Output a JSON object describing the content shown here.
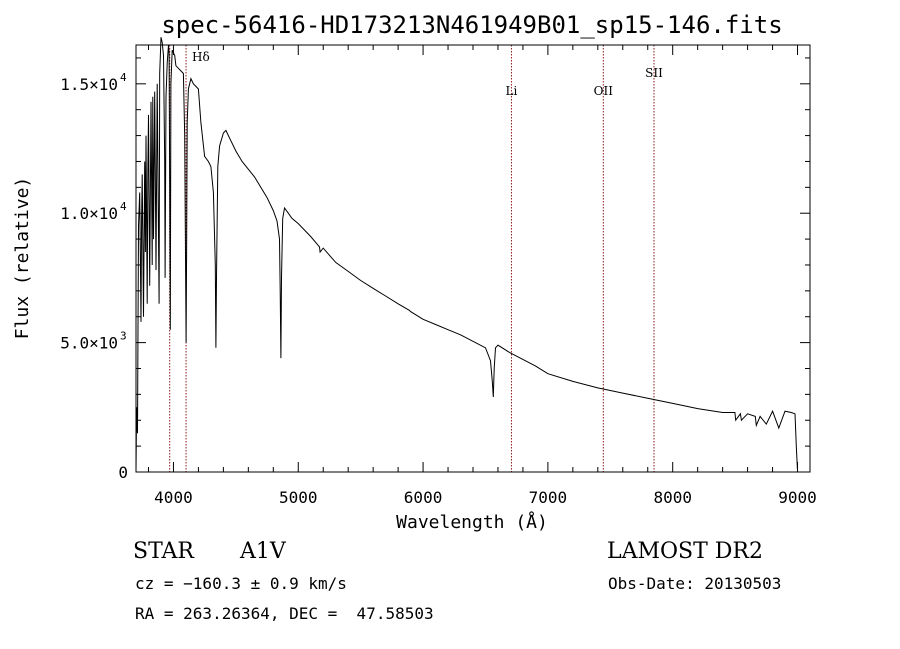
{
  "chart_data": {
    "type": "line",
    "title": "spec-56416-HD173213N461949B01_sp15-146.fits",
    "xlabel": "Wavelength (Å)",
    "ylabel": "Flux (relative)",
    "xlim": [
      3700,
      9100
    ],
    "ylim": [
      0,
      16500
    ],
    "x_ticks": [
      {
        "value": 4000,
        "label": "4000"
      },
      {
        "value": 5000,
        "label": "5000"
      },
      {
        "value": 6000,
        "label": "6000"
      },
      {
        "value": 7000,
        "label": "7000"
      },
      {
        "value": 8000,
        "label": "8000"
      },
      {
        "value": 9000,
        "label": "9000"
      }
    ],
    "y_ticks": [
      {
        "value": 0,
        "base": "0",
        "exp": ""
      },
      {
        "value": 5000,
        "base": "5.0×10",
        "exp": "3"
      },
      {
        "value": 10000,
        "base": "1.0×10",
        "exp": "4"
      },
      {
        "value": 15000,
        "base": "1.5×10",
        "exp": "4"
      }
    ],
    "grid": false,
    "line_color": "#000000",
    "marker_color": "#8b1a1a",
    "line_markers": [
      {
        "wavelength": 3970,
        "label": ""
      },
      {
        "wavelength": 4101,
        "label": "Hδ"
      },
      {
        "wavelength": 6708,
        "label": "Li"
      },
      {
        "wavelength": 7444,
        "label": "OII"
      },
      {
        "wavelength": 7850,
        "label": "SII"
      }
    ],
    "series": [
      {
        "x": [
          3700,
          3705,
          3712,
          3720,
          3730,
          3740,
          3745,
          3750,
          3760,
          3770,
          3775,
          3780,
          3790,
          3795,
          3800,
          3810,
          3820,
          3830,
          3835,
          3840,
          3850,
          3860,
          3870,
          3885,
          3890,
          3900,
          3910,
          3920,
          3930,
          3933,
          3940,
          3950,
          3960,
          3965,
          3970,
          3975,
          3980,
          3990,
          4000,
          4010,
          4020,
          4040,
          4060,
          4080,
          4090,
          4095,
          4101,
          4105,
          4110,
          4120,
          4140,
          4160,
          4180,
          4200,
          4220,
          4250,
          4280,
          4300,
          4320,
          4335,
          4340,
          4345,
          4355,
          4370,
          4400,
          4420,
          4440,
          4460,
          4480,
          4500,
          4550,
          4600,
          4650,
          4700,
          4750,
          4800,
          4830,
          4850,
          4855,
          4861,
          4866,
          4875,
          4890,
          4920,
          4950,
          5000,
          5100,
          5170,
          5175,
          5200,
          5300,
          5400,
          5500,
          5600,
          5700,
          5800,
          5890,
          5900,
          6000,
          6100,
          6200,
          6300,
          6500,
          6540,
          6555,
          6563,
          6570,
          6580,
          6600,
          6700,
          6800,
          6900,
          7000,
          7200,
          7400,
          7600,
          7800,
          8000,
          8200,
          8400,
          8498,
          8505,
          8542,
          8550,
          8600,
          8662,
          8670,
          8700,
          8750,
          8800,
          8850,
          8900,
          8950,
          8980,
          8990,
          9000
        ],
        "y": [
          0,
          2500,
          1500,
          9500,
          10800,
          5800,
          9800,
          11500,
          6000,
          12000,
          8500,
          13000,
          6500,
          11800,
          13800,
          7200,
          14300,
          8000,
          14500,
          9000,
          14700,
          7800,
          15000,
          6500,
          15400,
          16800,
          16600,
          16100,
          12000,
          7500,
          14500,
          15800,
          16500,
          16200,
          11000,
          5500,
          15000,
          16300,
          16200,
          16100,
          15700,
          15600,
          15500,
          15400,
          13000,
          9500,
          5000,
          8500,
          13500,
          14800,
          15200,
          15000,
          14900,
          14800,
          13500,
          12200,
          12000,
          11800,
          10800,
          8000,
          4800,
          7500,
          11800,
          12600,
          13100,
          13200,
          13000,
          12800,
          12600,
          12400,
          12000,
          11700,
          11400,
          11000,
          10600,
          10100,
          9700,
          9000,
          7000,
          4400,
          7500,
          9800,
          10200,
          10000,
          9800,
          9600,
          9100,
          8700,
          8500,
          8650,
          8100,
          7750,
          7400,
          7100,
          6800,
          6500,
          6250,
          6200,
          5900,
          5700,
          5500,
          5300,
          4800,
          4300,
          3500,
          2900,
          4000,
          4800,
          4900,
          4600,
          4350,
          4100,
          3800,
          3500,
          3250,
          3050,
          2850,
          2650,
          2450,
          2300,
          2300,
          2000,
          2250,
          2000,
          2250,
          2150,
          1800,
          2150,
          1850,
          2350,
          1700,
          2350,
          2300,
          2250,
          1000,
          50
        ]
      }
    ]
  },
  "info": {
    "object_type": "STAR",
    "spectral_class": "A1V",
    "survey": "LAMOST DR2",
    "cz": "cz = −160.3 ± 0.9 km/s",
    "obs_date": "Obs-Date: 20130503",
    "coords": "RA = 263.26364, DEC =  47.58503"
  }
}
